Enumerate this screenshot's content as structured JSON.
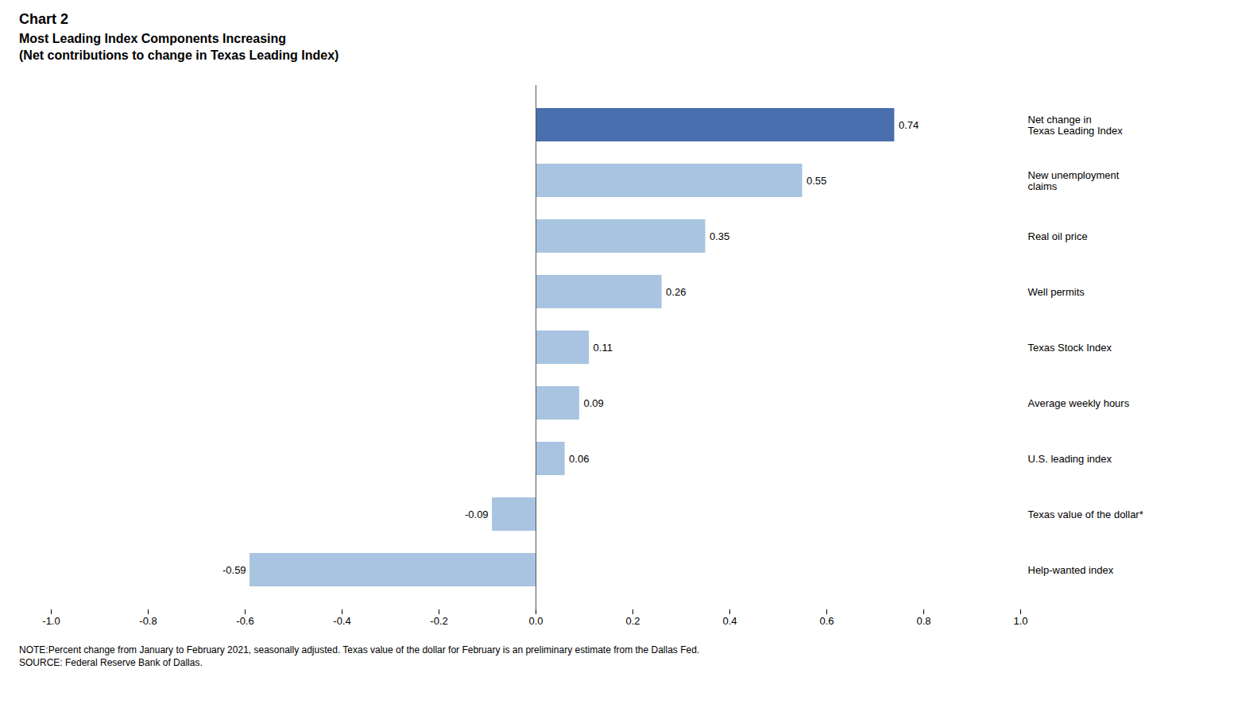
{
  "chart_data": {
    "type": "bar",
    "orientation": "horizontal",
    "title": "Chart 2",
    "subtitle": "Most Leading Index Components Increasing\n(Net contributions to change in Texas Leading Index)",
    "annotations": [
      "NOTE:Percent change from January to February 2021, seasonally adjusted. Texas value of the dollar for February is an preliminary estimate from the Dallas Fed.",
      "SOURCE: Federal Reserve Bank of Dallas."
    ],
    "categories": [
      "Net change in\nTexas Leading Index",
      "New unemployment\nclaims",
      "Real oil price",
      "Well permits",
      "Texas Stock Index",
      "Average weekly hours",
      "U.S. leading index",
      "Texas value of the dollar*",
      "Help-wanted index"
    ],
    "values": [
      0.74,
      0.55,
      0.35,
      0.26,
      0.11,
      0.09,
      0.06,
      -0.09,
      -0.59
    ],
    "colors": [
      "#4a6faf",
      "#a8c4e0",
      "#a8c4e0",
      "#a8c4e0",
      "#a8c4e0",
      "#a8c4e0",
      "#a8c4e0",
      "#a8c4e0",
      "#a8c4e0"
    ],
    "xlim": [
      -1.0,
      1.0
    ],
    "xticks": [
      {
        "value": -1.0,
        "label": "-1.0"
      },
      -0.8,
      -0.6,
      -0.4,
      -0.2,
      {
        "value": 0.0,
        "label": "0.0"
      },
      0.2,
      0.4,
      0.6,
      0.8,
      {
        "value": 1.0,
        "label": "1.0"
      }
    ],
    "data_labels": true,
    "grid": false
  }
}
